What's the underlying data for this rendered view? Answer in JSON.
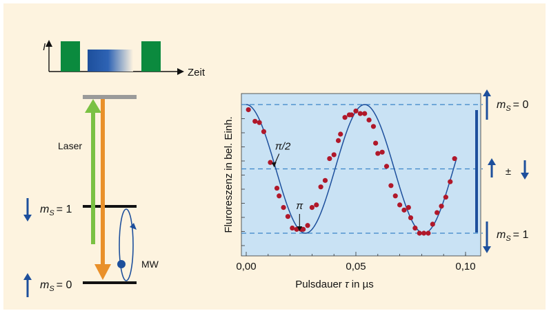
{
  "pulse_sequence": {
    "y_axis_label": "I",
    "x_axis_label": "Zeit"
  },
  "energy_levels": {
    "laser_label": "Laser",
    "microwave_label": "MW",
    "upper_level": {
      "symbol": "m",
      "subscript": "S",
      "value": "= 1"
    },
    "lower_level": {
      "symbol": "m",
      "subscript": "S",
      "value": "= 0"
    }
  },
  "right_labels": {
    "top": {
      "symbol": "m",
      "subscript": "S",
      "value": "= 0"
    },
    "middle": "±",
    "bottom": {
      "symbol": "m",
      "subscript": "S",
      "value": "= 1"
    }
  },
  "colors": {
    "background": "#fdf3df",
    "plot_area": "#c9e2f4",
    "pulse_green": "#0b8a3e",
    "laser_green": "#7ac143",
    "fluorescence_orange": "#e9902a",
    "spin_blue": "#1d4f9c",
    "data_point": "#b0182a",
    "dashed_line": "#3a84c8"
  },
  "chart_data": {
    "type": "scatter",
    "xlabel_prefix": "Pulsdauer ",
    "xlabel_var": "τ",
    "xlabel_suffix": " in µs",
    "ylabel": "Fluroreszenz in bel. Einh.",
    "xlim": [
      0,
      0.1
    ],
    "ylim": [
      0,
      1
    ],
    "x_ticks": [
      0,
      0.05,
      0.1
    ],
    "x_tick_labels": [
      "0,00",
      "0,05",
      "0,10"
    ],
    "annotations": [
      {
        "text": "π/2",
        "x": 0.0125,
        "y": 0.5
      },
      {
        "text": "π",
        "x": 0.024,
        "y": 0
      }
    ],
    "reference_levels": [
      1,
      0.5,
      0
    ],
    "fit_curve": {
      "period": 0.054,
      "amplitude": 0.5,
      "offset": 0.5,
      "phase_shift": 0,
      "x_start": 0,
      "x_end": 0.096
    },
    "series": [
      {
        "x": [
          0.001,
          0.004,
          0.006,
          0.008,
          0.011,
          0.014,
          0.015,
          0.017,
          0.019,
          0.021,
          0.023,
          0.025,
          0.026,
          0.028,
          0.03,
          0.032,
          0.034,
          0.036,
          0.038,
          0.04,
          0.042,
          0.043,
          0.045,
          0.047,
          0.048,
          0.05,
          0.052,
          0.054,
          0.056,
          0.058,
          0.059,
          0.06,
          0.062,
          0.064,
          0.066,
          0.068,
          0.07,
          0.072,
          0.074,
          0.075,
          0.077,
          0.079,
          0.081,
          0.083,
          0.085,
          0.087,
          0.089,
          0.091,
          0.093,
          0.095
        ],
        "y": [
          0.96,
          0.87,
          0.86,
          0.79,
          0.55,
          0.35,
          0.29,
          0.2,
          0.13,
          0.04,
          0.03,
          0.03,
          0.03,
          0.06,
          0.2,
          0.22,
          0.36,
          0.41,
          0.58,
          0.61,
          0.72,
          0.77,
          0.9,
          0.92,
          0.92,
          0.95,
          0.93,
          0.93,
          0.88,
          0.83,
          0.7,
          0.62,
          0.63,
          0.52,
          0.37,
          0.29,
          0.22,
          0.18,
          0.2,
          0.12,
          0.04,
          0.0,
          0.0,
          0.0,
          0.07,
          0.16,
          0.21,
          0.28,
          0.4,
          0.58
        ]
      }
    ]
  }
}
